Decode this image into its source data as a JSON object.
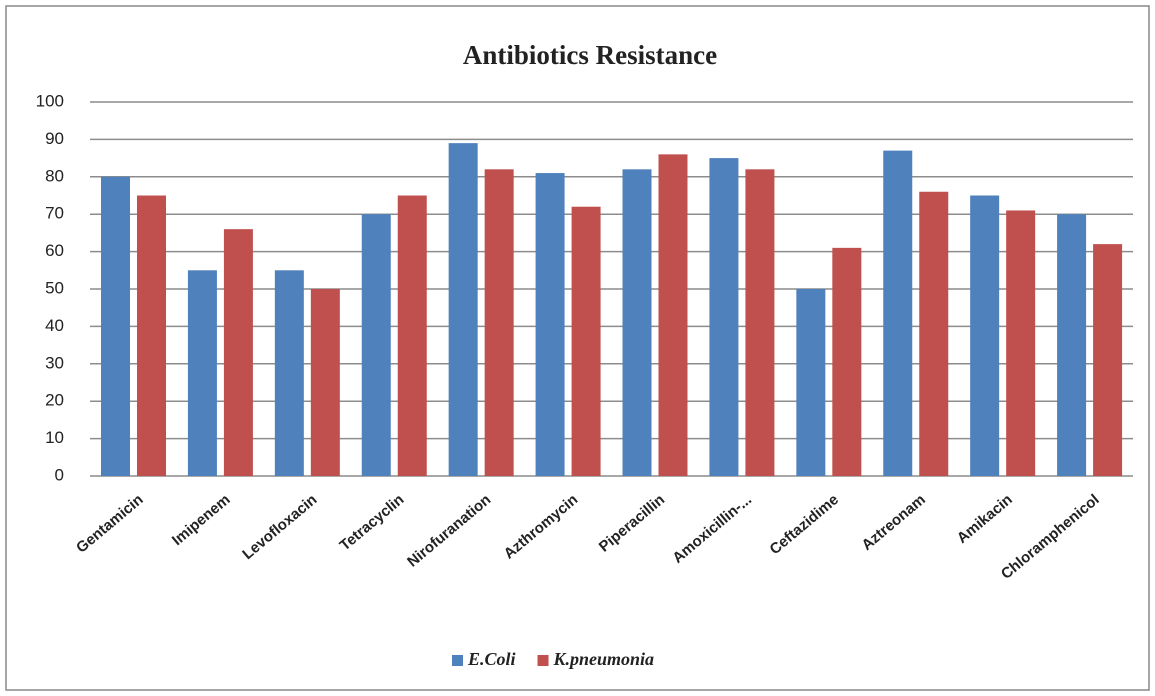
{
  "chart_data": {
    "type": "bar",
    "title": "Antibiotics Resistance",
    "categories": [
      "Gentamicin",
      "Imipenem",
      "Levofloxacin",
      "Tetracyclin",
      "Nirofuranation",
      "Azthromycin",
      "Piperacillin",
      "Amoxicillin-...",
      "Ceftazidime",
      "Aztreonam",
      "Amikacin",
      "Chloramphenicol"
    ],
    "series": [
      {
        "name": "E.Coli",
        "color": "#4f81bd",
        "values": [
          80,
          55,
          55,
          70,
          89,
          81,
          82,
          85,
          50,
          87,
          75,
          70
        ]
      },
      {
        "name": "K.pneumonia",
        "color": "#c0504d",
        "values": [
          75,
          66,
          50,
          75,
          82,
          72,
          86,
          82,
          61,
          76,
          71,
          62
        ]
      }
    ],
    "ylim": [
      0,
      100
    ],
    "yticks": [
      0,
      10,
      20,
      30,
      40,
      50,
      60,
      70,
      80,
      90,
      100
    ],
    "grid": true,
    "legend": "bottom"
  }
}
